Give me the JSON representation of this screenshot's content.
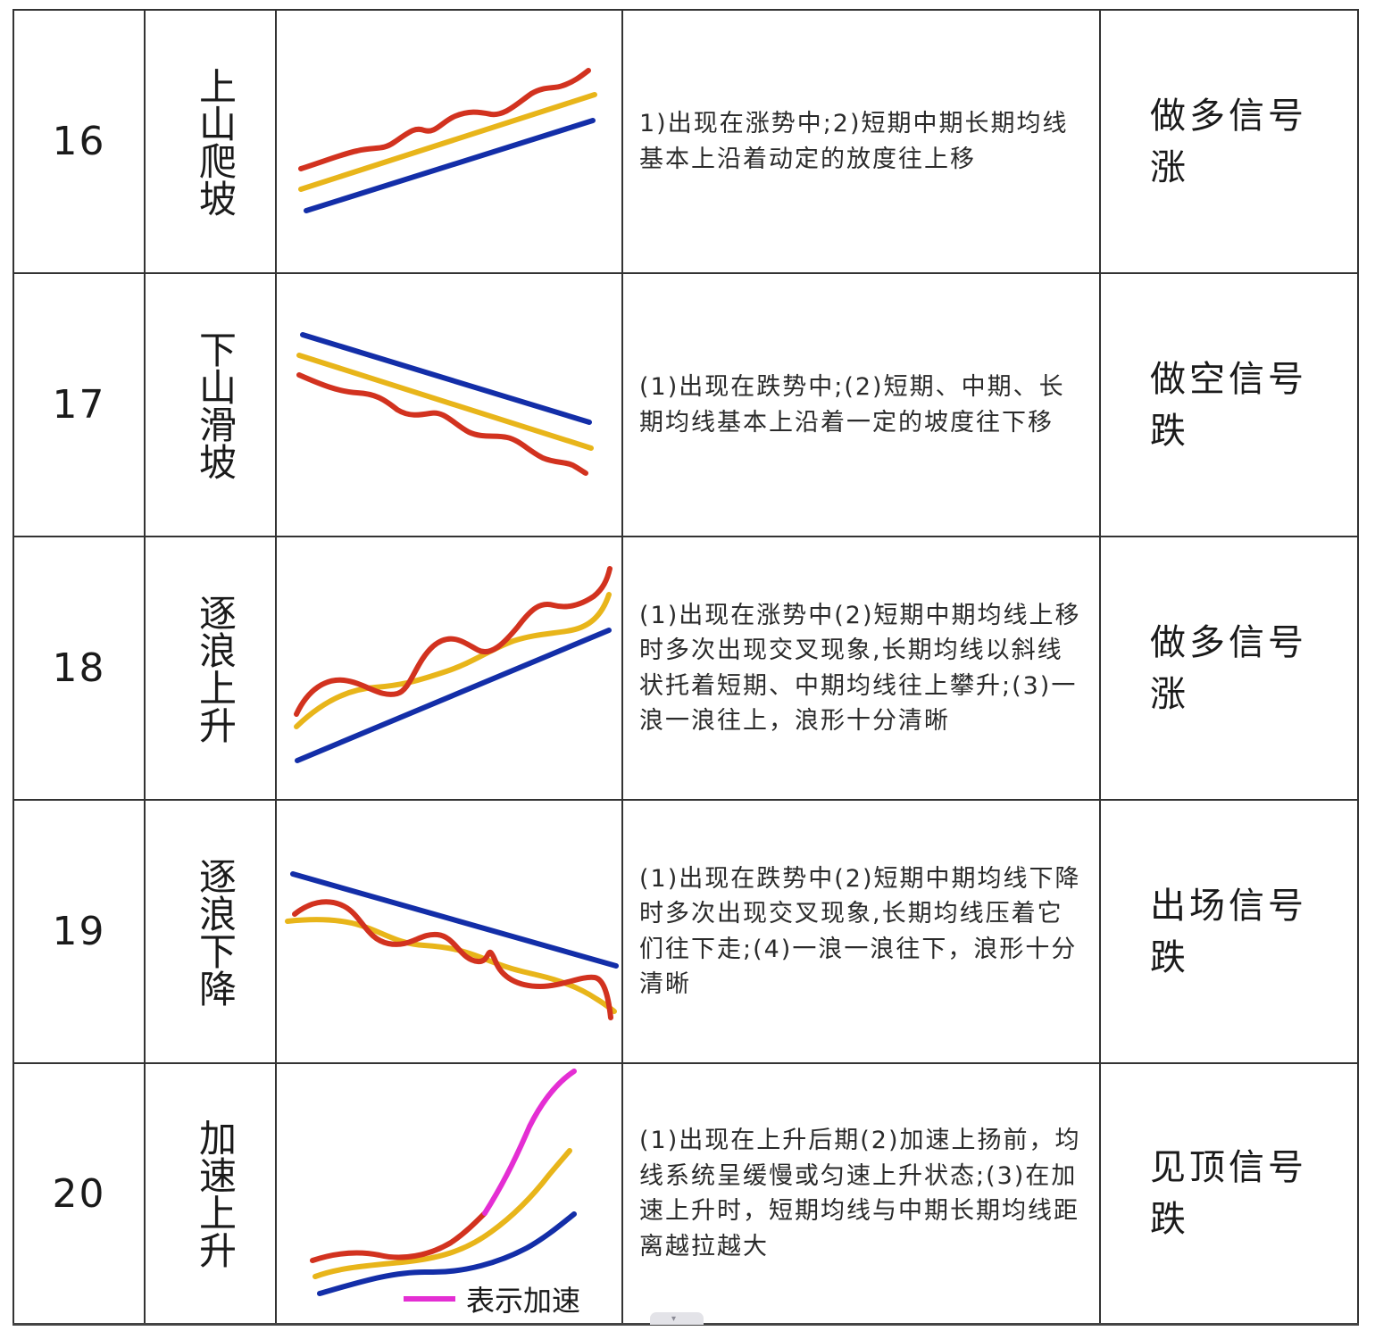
{
  "colors": {
    "short_ma": "#d2321f",
    "mid_ma": "#e8b51a",
    "long_ma": "#132ea8",
    "accel": "#e42ed3",
    "border": "#333333"
  },
  "rows": [
    {
      "num": "16",
      "name": "上山爬坡",
      "desc": "1)出现在涨势中;2)短期中期长期均线基本上沿着动定的放度往上移",
      "signal": "做多信号",
      "trend": "涨"
    },
    {
      "num": "17",
      "name": "下山滑坡",
      "desc": "(1)出现在跌势中;(2)短期、中期、长期均线基本上沿着一定的坡度往下移",
      "signal": "做空信号",
      "trend": "跌"
    },
    {
      "num": "18",
      "name": "逐浪上升",
      "desc": "(1)出现在涨势中(2)短期中期均线上移时多次出现交叉现象,长期均线以斜线状托着短期、中期均线往上攀升;(3)一浪一浪往上，浪形十分清晰",
      "signal": "做多信号",
      "trend": "涨"
    },
    {
      "num": "19",
      "name": "逐浪下降",
      "desc": "(1)出现在跌势中(2)短期中期均线下降时多次出现交叉现象,长期均线压着它们往下走;(4)一浪一浪往下，浪形十分清晰",
      "signal": "出场信号",
      "trend": "跌"
    },
    {
      "num": "20",
      "name": "加速上升",
      "desc": "(1)出现在上升后期(2)加速上扬前，均线系统呈缓慢或匀速上升状态;(3)在加速上升时，短期均线与中期长期均线距离越拉越大",
      "signal": "见顶信号",
      "trend": "跌",
      "legend": "表示加速"
    }
  ]
}
